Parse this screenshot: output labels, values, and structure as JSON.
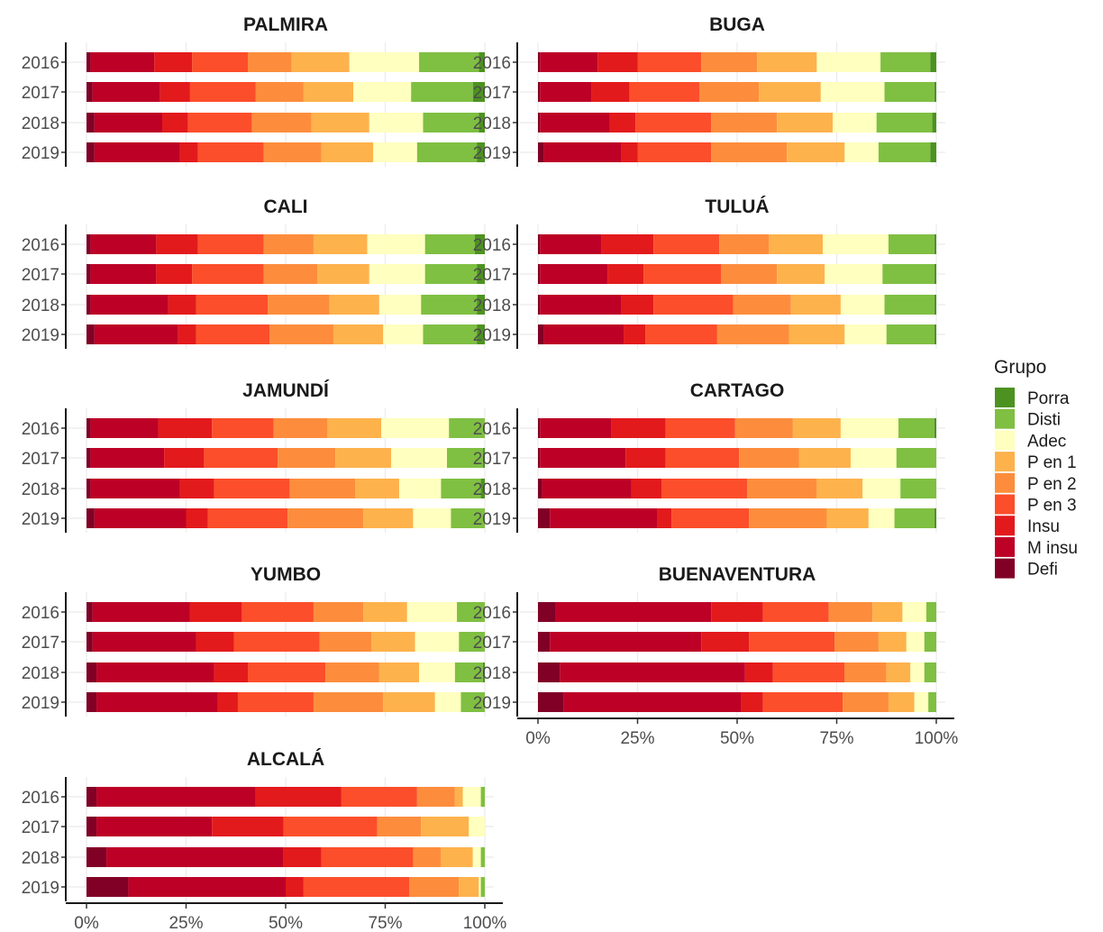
{
  "chart_data": {
    "type": "bar",
    "orientation": "horizontal",
    "stacked": true,
    "normalized": true,
    "x_tick_labels": [
      "0%",
      "25%",
      "50%",
      "75%",
      "100%"
    ],
    "xlim": [
      0,
      1
    ],
    "legend": {
      "title": "Grupo",
      "placement": "right",
      "entries": [
        {
          "name": "Porra",
          "color": "#4d9221"
        },
        {
          "name": "Disti",
          "color": "#7fbf42"
        },
        {
          "name": "Adec",
          "color": "#ffffbf"
        },
        {
          "name": "P en 1",
          "color": "#feb24c"
        },
        {
          "name": "P en 2",
          "color": "#fd8d3c"
        },
        {
          "name": "P en 3",
          "color": "#fc4e2a"
        },
        {
          "name": "Insu",
          "color": "#e31a1c"
        },
        {
          "name": "M insu",
          "color": "#bd0026"
        },
        {
          "name": "Defi",
          "color": "#800026"
        }
      ]
    },
    "stack_order": [
      "Defi",
      "M insu",
      "Insu",
      "P en 3",
      "P en 2",
      "P en 1",
      "Adec",
      "Disti",
      "Porra"
    ],
    "panels": [
      {
        "title": "PALMIRA",
        "categories": [
          "2016",
          "2017",
          "2018",
          "2019"
        ],
        "values": [
          [
            0.01,
            0.16,
            0.095,
            0.14,
            0.11,
            0.145,
            0.175,
            0.15,
            0.015
          ],
          [
            0.015,
            0.17,
            0.075,
            0.165,
            0.12,
            0.125,
            0.145,
            0.155,
            0.03
          ],
          [
            0.02,
            0.17,
            0.065,
            0.16,
            0.15,
            0.145,
            0.135,
            0.14,
            0.015
          ],
          [
            0.02,
            0.215,
            0.045,
            0.165,
            0.145,
            0.13,
            0.11,
            0.15,
            0.02
          ]
        ]
      },
      {
        "title": "BUGA",
        "categories": [
          "2016",
          "2017",
          "2018",
          "2019"
        ],
        "values": [
          [
            0.005,
            0.145,
            0.1,
            0.16,
            0.14,
            0.15,
            0.16,
            0.125,
            0.015
          ],
          [
            0.005,
            0.13,
            0.095,
            0.175,
            0.15,
            0.155,
            0.16,
            0.125,
            0.005
          ],
          [
            0.005,
            0.175,
            0.065,
            0.19,
            0.165,
            0.14,
            0.11,
            0.14,
            0.01
          ],
          [
            0.015,
            0.195,
            0.04,
            0.185,
            0.19,
            0.145,
            0.085,
            0.13,
            0.015
          ]
        ]
      },
      {
        "title": "CALI",
        "categories": [
          "2016",
          "2017",
          "2018",
          "2019"
        ],
        "values": [
          [
            0.01,
            0.165,
            0.105,
            0.165,
            0.125,
            0.135,
            0.145,
            0.125,
            0.025
          ],
          [
            0.01,
            0.165,
            0.09,
            0.18,
            0.135,
            0.13,
            0.14,
            0.13,
            0.02
          ],
          [
            0.01,
            0.195,
            0.07,
            0.18,
            0.155,
            0.125,
            0.105,
            0.14,
            0.02
          ],
          [
            0.02,
            0.21,
            0.045,
            0.185,
            0.16,
            0.125,
            0.1,
            0.135,
            0.02
          ]
        ]
      },
      {
        "title": "TULUÁ",
        "categories": [
          "2016",
          "2017",
          "2018",
          "2019"
        ],
        "values": [
          [
            0.005,
            0.155,
            0.13,
            0.165,
            0.125,
            0.135,
            0.165,
            0.115,
            0.005
          ],
          [
            0.005,
            0.17,
            0.09,
            0.195,
            0.14,
            0.12,
            0.145,
            0.13,
            0.005
          ],
          [
            0.005,
            0.205,
            0.08,
            0.2,
            0.145,
            0.125,
            0.11,
            0.125,
            0.005
          ],
          [
            0.015,
            0.2,
            0.055,
            0.18,
            0.18,
            0.14,
            0.105,
            0.12,
            0.005
          ]
        ]
      },
      {
        "title": "JAMUNDÍ",
        "categories": [
          "2016",
          "2017",
          "2018",
          "2019"
        ],
        "values": [
          [
            0.01,
            0.17,
            0.135,
            0.155,
            0.135,
            0.135,
            0.17,
            0.09,
            0.0
          ],
          [
            0.01,
            0.185,
            0.1,
            0.185,
            0.145,
            0.14,
            0.14,
            0.09,
            0.005
          ],
          [
            0.01,
            0.225,
            0.085,
            0.19,
            0.165,
            0.11,
            0.105,
            0.1,
            0.01
          ],
          [
            0.02,
            0.23,
            0.055,
            0.2,
            0.19,
            0.125,
            0.095,
            0.085,
            0.0
          ]
        ]
      },
      {
        "title": "CARTAGO",
        "categories": [
          "2016",
          "2017",
          "2018",
          "2019"
        ],
        "values": [
          [
            0.005,
            0.18,
            0.135,
            0.175,
            0.145,
            0.12,
            0.145,
            0.09,
            0.005
          ],
          [
            0.005,
            0.215,
            0.1,
            0.185,
            0.15,
            0.13,
            0.115,
            0.1,
            0.0
          ],
          [
            0.01,
            0.225,
            0.075,
            0.215,
            0.175,
            0.115,
            0.095,
            0.09,
            0.0
          ],
          [
            0.03,
            0.27,
            0.035,
            0.195,
            0.195,
            0.105,
            0.065,
            0.1,
            0.005
          ]
        ]
      },
      {
        "title": "YUMBO",
        "categories": [
          "2016",
          "2017",
          "2018",
          "2019"
        ],
        "values": [
          [
            0.015,
            0.245,
            0.13,
            0.18,
            0.125,
            0.11,
            0.125,
            0.07,
            0.0
          ],
          [
            0.015,
            0.26,
            0.095,
            0.215,
            0.13,
            0.11,
            0.11,
            0.065,
            0.0
          ],
          [
            0.025,
            0.295,
            0.085,
            0.195,
            0.135,
            0.1,
            0.09,
            0.07,
            0.005
          ],
          [
            0.025,
            0.305,
            0.05,
            0.19,
            0.175,
            0.13,
            0.065,
            0.06,
            0.0
          ]
        ]
      },
      {
        "title": "BUENAVENTURA",
        "categories": [
          "2016",
          "2017",
          "2018",
          "2019"
        ],
        "values": [
          [
            0.045,
            0.39,
            0.13,
            0.165,
            0.11,
            0.075,
            0.06,
            0.025,
            0.0
          ],
          [
            0.03,
            0.38,
            0.12,
            0.215,
            0.11,
            0.07,
            0.045,
            0.03,
            0.0
          ],
          [
            0.055,
            0.465,
            0.07,
            0.18,
            0.105,
            0.06,
            0.035,
            0.03,
            0.0
          ],
          [
            0.065,
            0.445,
            0.055,
            0.2,
            0.115,
            0.065,
            0.035,
            0.02,
            0.0
          ]
        ]
      },
      {
        "title": "ALCALÁ",
        "categories": [
          "2016",
          "2017",
          "2018",
          "2019"
        ],
        "values": [
          [
            0.025,
            0.4,
            0.215,
            0.19,
            0.095,
            0.02,
            0.045,
            0.01,
            0.0
          ],
          [
            0.025,
            0.29,
            0.18,
            0.235,
            0.11,
            0.12,
            0.04,
            0.0,
            0.0
          ],
          [
            0.05,
            0.445,
            0.095,
            0.23,
            0.07,
            0.08,
            0.02,
            0.01,
            0.0
          ],
          [
            0.105,
            0.395,
            0.045,
            0.265,
            0.125,
            0.05,
            0.005,
            0.01,
            0.0
          ]
        ]
      }
    ]
  }
}
